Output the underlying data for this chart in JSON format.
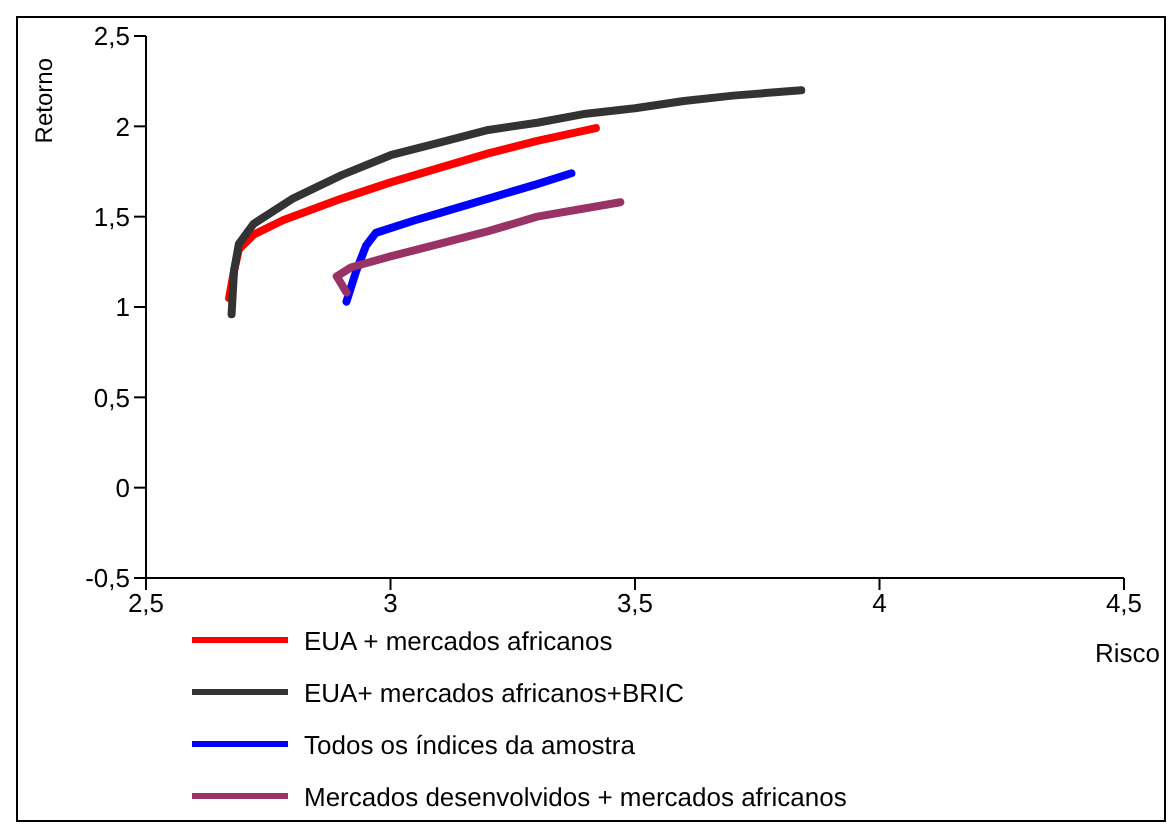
{
  "chart_data": {
    "type": "line",
    "xlabel": "Risco",
    "ylabel": "Retorno",
    "xlim": [
      2.5,
      4.5
    ],
    "xticks": [
      {
        "value": 2.5,
        "label": "2,5"
      },
      3,
      {
        "value": 3.5,
        "label": "3,5"
      },
      4,
      {
        "value": 4.5,
        "label": "4,5"
      }
    ],
    "ylim": [
      -0.5,
      2.5
    ],
    "yticks": [
      {
        "value": -0.5,
        "label": "-0,5"
      },
      0,
      {
        "value": 0.5,
        "label": "0,5"
      },
      1,
      {
        "value": 1.5,
        "label": "1,5"
      },
      2,
      {
        "value": 2.5,
        "label": "2,5"
      }
    ],
    "grid": false,
    "legend": "bottom",
    "marker": "none",
    "line_style": "solid",
    "series": [
      {
        "name": "EUA + mercados africanos",
        "color": "#ff0000",
        "x": [
          2.67,
          2.68,
          2.69,
          2.72,
          2.78,
          2.9,
          3.0,
          3.1,
          3.2,
          3.3,
          3.42
        ],
        "values": [
          1.05,
          1.2,
          1.32,
          1.4,
          1.48,
          1.6,
          1.69,
          1.77,
          1.85,
          1.92,
          1.99
        ]
      },
      {
        "name": "EUA+ mercados africanos+BRIC",
        "color": "#333333",
        "x": [
          2.675,
          2.68,
          2.69,
          2.72,
          2.8,
          2.9,
          3.0,
          3.1,
          3.2,
          3.3,
          3.4,
          3.5,
          3.6,
          3.7,
          3.84
        ],
        "values": [
          0.96,
          1.2,
          1.35,
          1.46,
          1.6,
          1.73,
          1.84,
          1.91,
          1.98,
          2.02,
          2.07,
          2.1,
          2.14,
          2.17,
          2.2
        ]
      },
      {
        "name": "Todos os índices da amostra",
        "color": "#0000ff",
        "x": [
          2.91,
          2.93,
          2.95,
          2.97,
          3.05,
          3.1,
          3.2,
          3.3,
          3.37
        ],
        "values": [
          1.03,
          1.2,
          1.34,
          1.41,
          1.48,
          1.52,
          1.6,
          1.68,
          1.74
        ]
      },
      {
        "name": "Mercados desenvolvidos + mercados africanos",
        "color": "#993366",
        "x": [
          2.91,
          2.89,
          2.92,
          3.0,
          3.1,
          3.2,
          3.3,
          3.47
        ],
        "values": [
          1.08,
          1.17,
          1.22,
          1.28,
          1.35,
          1.42,
          1.5,
          1.58
        ]
      }
    ]
  }
}
